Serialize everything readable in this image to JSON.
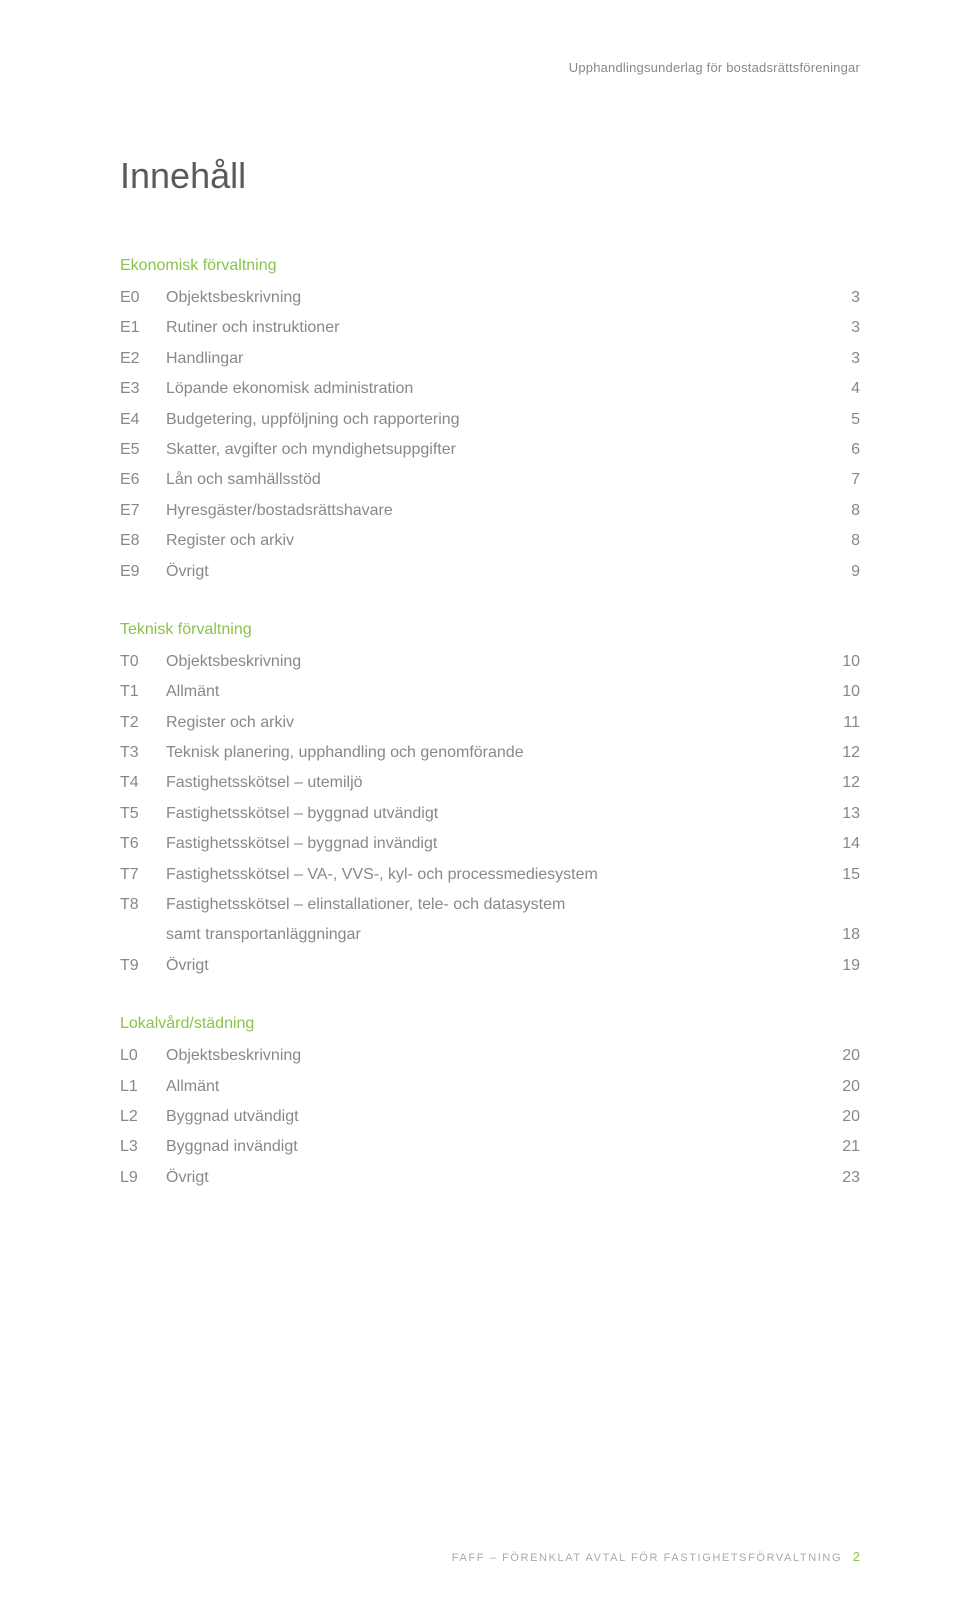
{
  "running_head": "Upphandlingsunderlag för bostadsrättsföreningar",
  "title": "Innehåll",
  "colors": {
    "accent": "#8bc34a",
    "body_text": "#888888",
    "title_text": "#5a5a5a",
    "background": "#ffffff",
    "footer_text": "#aaaaaa"
  },
  "typography": {
    "title_fontsize": 36,
    "section_head_fontsize": 16,
    "row_fontsize": 16,
    "footer_fontsize": 11,
    "running_head_fontsize": 13
  },
  "sections": [
    {
      "heading": "Ekonomisk förvaltning",
      "items": [
        {
          "code": "E0",
          "label": "Objektsbeskrivning",
          "page": "3"
        },
        {
          "code": "E1",
          "label": "Rutiner och instruktioner",
          "page": "3"
        },
        {
          "code": "E2",
          "label": "Handlingar",
          "page": "3"
        },
        {
          "code": "E3",
          "label": "Löpande ekonomisk administration",
          "page": "4"
        },
        {
          "code": "E4",
          "label": "Budgetering, uppföljning och rapportering",
          "page": "5"
        },
        {
          "code": "E5",
          "label": "Skatter, avgifter och myndighetsuppgifter",
          "page": "6"
        },
        {
          "code": "E6",
          "label": "Lån och samhällsstöd",
          "page": "7"
        },
        {
          "code": "E7",
          "label": "Hyresgäster/bostadsrättshavare",
          "page": "8"
        },
        {
          "code": "E8",
          "label": "Register och arkiv",
          "page": "8"
        },
        {
          "code": "E9",
          "label": "Övrigt",
          "page": "9"
        }
      ]
    },
    {
      "heading": "Teknisk förvaltning",
      "items": [
        {
          "code": "T0",
          "label": "Objektsbeskrivning",
          "page": "10"
        },
        {
          "code": "T1",
          "label": "Allmänt",
          "page": "10"
        },
        {
          "code": "T2",
          "label": "Register och arkiv",
          "page": "11"
        },
        {
          "code": "T3",
          "label": "Teknisk planering, upphandling och genomförande",
          "page": "12"
        },
        {
          "code": "T4",
          "label": "Fastighetsskötsel – utemiljö",
          "page": "12"
        },
        {
          "code": "T5",
          "label": "Fastighetsskötsel – byggnad utvändigt",
          "page": "13"
        },
        {
          "code": "T6",
          "label": "Fastighetsskötsel – byggnad invändigt",
          "page": "14"
        },
        {
          "code": "T7",
          "label": "Fastighetsskötsel – VA-, VVS-, kyl- och processmediesystem",
          "page": "15"
        },
        {
          "code": "T8",
          "label": "Fastighetsskötsel – elinstallationer, tele- och datasystem",
          "sublabel": "samt transportanläggningar",
          "page": "18"
        },
        {
          "code": "T9",
          "label": "Övrigt",
          "page": "19"
        }
      ]
    },
    {
      "heading": "Lokalvård/städning",
      "items": [
        {
          "code": "L0",
          "label": "Objektsbeskrivning",
          "page": "20"
        },
        {
          "code": "L1",
          "label": "Allmänt",
          "page": "20"
        },
        {
          "code": "L2",
          "label": "Byggnad utvändigt",
          "page": "20"
        },
        {
          "code": "L3",
          "label": "Byggnad invändigt",
          "page": "21"
        },
        {
          "code": "L9",
          "label": "Övrigt",
          "page": "23"
        }
      ]
    }
  ],
  "footer": {
    "text": "FAFF – FÖRENKLAT AVTAL FÖR FASTIGHETSFÖRVALTNING",
    "page_number": "2"
  }
}
